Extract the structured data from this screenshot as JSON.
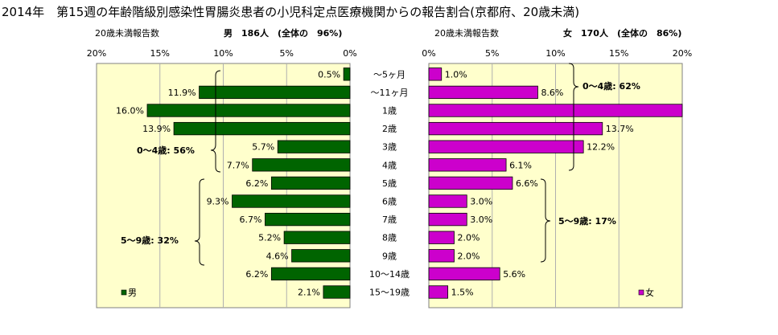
{
  "title": "2014年　第15週の年齢階級別感染性胃腸炎患者の小児科定点医療機関からの報告割合(京都府、20歳未満)",
  "left_panel": {
    "subtitle": "20歳未満報告数",
    "summary": "男　186人　(全体の　96%)",
    "legend": "男",
    "ticks": [
      "20%",
      "15%",
      "10%",
      "5%",
      "0%"
    ]
  },
  "right_panel": {
    "subtitle": "20歳未満報告数",
    "summary": "女　170人　(全体の　86%)",
    "legend": "女",
    "ticks": [
      "0%",
      "5%",
      "10%",
      "15%",
      "20%"
    ]
  },
  "brackets": {
    "male_0_4": "0～4歳: 56%",
    "male_5_9": "5～9歳: 32%",
    "female_0_4": "0～4歳: 62%",
    "female_5_9": "5～9歳: 17%"
  },
  "colors": {
    "male": "#006400",
    "female": "#cc00cc",
    "plot_bg": "#ffffcc"
  },
  "chart_data": {
    "type": "bar",
    "orientation": "horizontal",
    "categories": [
      "～5ヶ月",
      "～11ヶ月",
      "1歳",
      "2歳",
      "3歳",
      "4歳",
      "5歳",
      "6歳",
      "7歳",
      "8歳",
      "9歳",
      "10～14歳",
      "15～19歳"
    ],
    "series": [
      {
        "name": "男",
        "values": [
          0.5,
          11.9,
          16.0,
          13.9,
          5.7,
          7.7,
          6.2,
          9.3,
          6.7,
          5.2,
          4.6,
          6.2,
          2.1
        ],
        "labels": [
          "0.5%",
          "11.9%",
          "16.0%",
          "13.9%",
          "5.7%",
          "7.7%",
          "6.2%",
          "9.3%",
          "6.7%",
          "5.2%",
          "4.6%",
          "6.2%",
          "2.1%"
        ]
      },
      {
        "name": "女",
        "values": [
          1.0,
          8.6,
          20.0,
          13.7,
          12.2,
          6.1,
          6.6,
          3.0,
          3.0,
          2.0,
          2.0,
          5.6,
          1.5
        ],
        "labels": [
          "1.0%",
          "8.6%",
          "",
          "13.7%",
          "12.2%",
          "6.1%",
          "6.6%",
          "3.0%",
          "3.0%",
          "2.0%",
          "2.0%",
          "5.6%",
          "1.5%"
        ]
      }
    ],
    "xlim": [
      0,
      20
    ],
    "grid": true
  }
}
